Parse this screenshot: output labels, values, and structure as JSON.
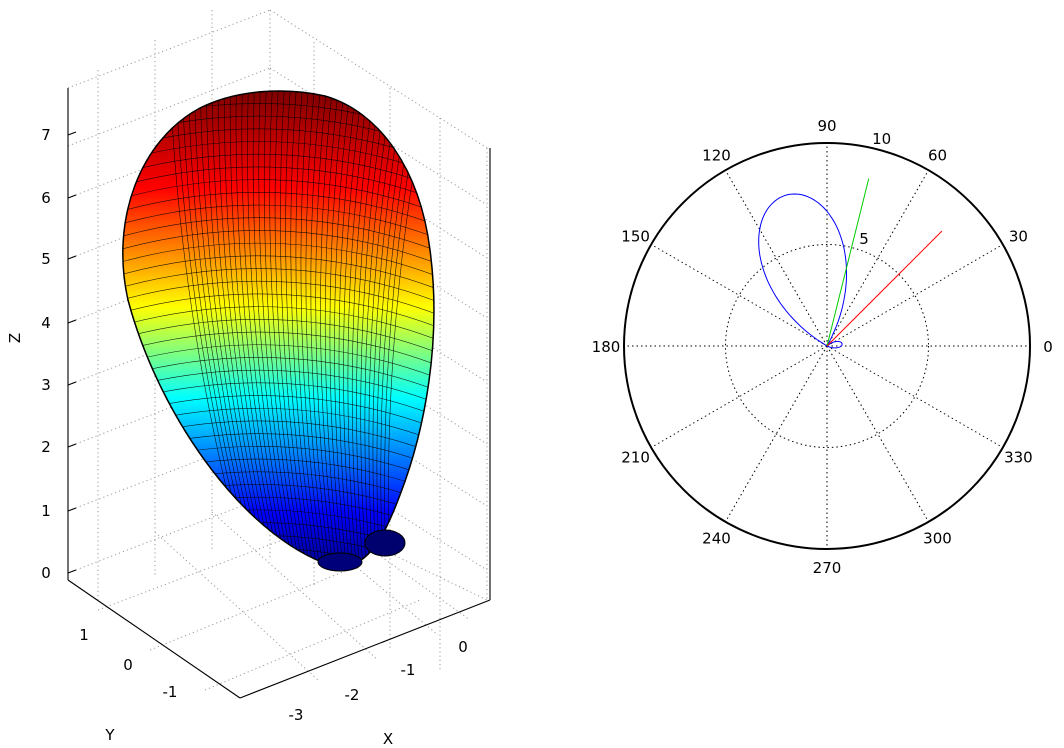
{
  "chart_data": [
    {
      "type": "surface3d",
      "title": "",
      "xlabel": "X",
      "ylabel": "Y",
      "zlabel": "Z",
      "x_ticks": [
        "0",
        "-1",
        "-2",
        "-3"
      ],
      "y_ticks": [
        "1",
        "0",
        "-1"
      ],
      "z_ticks": [
        "0",
        "1",
        "2",
        "3",
        "4",
        "5",
        "6",
        "7"
      ],
      "xlim": [
        -3.6,
        0.7
      ],
      "ylim": [
        -1.6,
        1.6
      ],
      "zlim": [
        0,
        7.6
      ],
      "grid": true,
      "colormap": "jet",
      "surface": {
        "shape": "ellipsoidal lobe",
        "z_min": 0,
        "z_max": 7.6,
        "colormap_stops": [
          "#00008f",
          "#0000ff",
          "#00ffff",
          "#ffff00",
          "#ff0000",
          "#800000"
        ]
      }
    },
    {
      "type": "polar",
      "title": "",
      "angle_ticks": [
        "0",
        "30",
        "60",
        "90",
        "120",
        "150",
        "180",
        "210",
        "240",
        "270",
        "300",
        "330"
      ],
      "radial_ticks": [
        "5",
        "10"
      ],
      "rmax": 10,
      "grid": true,
      "series": [
        {
          "color": "#0000ff",
          "kind": "lobe",
          "peak_angle_deg": 105,
          "peak_r": 7.7,
          "width_deg": 26
        },
        {
          "color": "#0000ff",
          "kind": "lobe",
          "peak_angle_deg": 8,
          "peak_r": 0.75,
          "width_deg": 20
        },
        {
          "color": "#00cc00",
          "kind": "ray",
          "angle_deg": 76,
          "r": 8.5
        },
        {
          "color": "#ff0000",
          "kind": "ray",
          "angle_deg": 45,
          "r": 8.0
        }
      ]
    }
  ]
}
